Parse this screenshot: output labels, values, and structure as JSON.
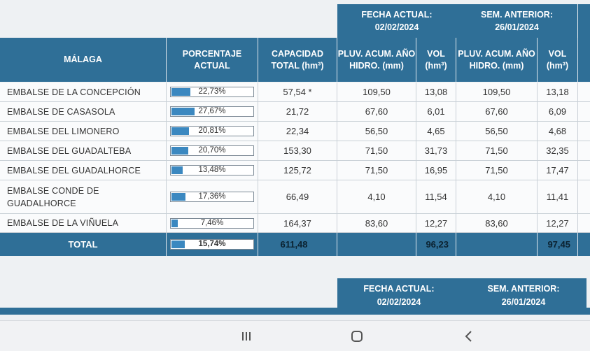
{
  "header_groups": [
    {
      "title": "FECHA ACTUAL:",
      "date": "02/02/2024"
    },
    {
      "title": "SEM. ANTERIOR:",
      "date": "26/01/2024"
    }
  ],
  "columns": {
    "province": "MÁLAGA",
    "percentage": "PORCENTAJE ACTUAL",
    "capacity": "CAPACIDAD TOTAL (hm³)",
    "pluv_current": "PLUV. ACUM. AÑO HIDRO. (mm)",
    "vol_current": "VOL (hm³)",
    "pluv_prev": "PLUV. ACUM. AÑO HIDRO. (mm)",
    "vol_prev": "VOL (hm³)"
  },
  "rows": [
    {
      "name": "EMBALSE DE LA CONCEPCIÓN",
      "pct_label": "22,73%",
      "pct": 22.73,
      "capacity": "57,54 *",
      "pluv_current": "109,50",
      "vol_current": "13,08",
      "pluv_prev": "109,50",
      "vol_prev": "13,18"
    },
    {
      "name": "EMBALSE DE CASASOLA",
      "pct_label": "27,67%",
      "pct": 27.67,
      "capacity": "21,72",
      "pluv_current": "67,60",
      "vol_current": "6,01",
      "pluv_prev": "67,60",
      "vol_prev": "6,09"
    },
    {
      "name": "EMBALSE DEL LIMONERO",
      "pct_label": "20,81%",
      "pct": 20.81,
      "capacity": "22,34",
      "pluv_current": "56,50",
      "vol_current": "4,65",
      "pluv_prev": "56,50",
      "vol_prev": "4,68"
    },
    {
      "name": "EMBALSE DEL GUADALTEBA",
      "pct_label": "20,70%",
      "pct": 20.7,
      "capacity": "153,30",
      "pluv_current": "71,50",
      "vol_current": "31,73",
      "pluv_prev": "71,50",
      "vol_prev": "32,35"
    },
    {
      "name": "EMBALSE DEL GUADALHORCE",
      "pct_label": "13,48%",
      "pct": 13.48,
      "capacity": "125,72",
      "pluv_current": "71,50",
      "vol_current": "16,95",
      "pluv_prev": "71,50",
      "vol_prev": "17,47"
    },
    {
      "name": "EMBALSE CONDE DE GUADALHORCE",
      "pct_label": "17,36%",
      "pct": 17.36,
      "capacity": "66,49",
      "pluv_current": "4,10",
      "vol_current": "11,54",
      "pluv_prev": "4,10",
      "vol_prev": "11,41"
    },
    {
      "name": "EMBALSE DE LA VIÑUELA",
      "pct_label": "7,46%",
      "pct": 7.46,
      "capacity": "164,37",
      "pluv_current": "83,60",
      "vol_current": "12,27",
      "pluv_prev": "83,60",
      "vol_prev": "12,27"
    }
  ],
  "total": {
    "label": "TOTAL",
    "pct_label": "15,74%",
    "pct": 15.74,
    "capacity": "611,48",
    "vol_current": "96,23",
    "vol_prev": "97,45"
  },
  "second_table": [
    {
      "title": "FECHA ACTUAL:",
      "date": "02/02/2024"
    },
    {
      "title": "SEM. ANTERIOR:",
      "date": "26/01/2024"
    }
  ],
  "navbar": {
    "recents": "recents-icon",
    "home": "home-icon",
    "back": "back-icon"
  },
  "colors": {
    "header": "#2f6f97",
    "bar_fill": "#3b88c0",
    "row_bg": "#fafbfc"
  }
}
